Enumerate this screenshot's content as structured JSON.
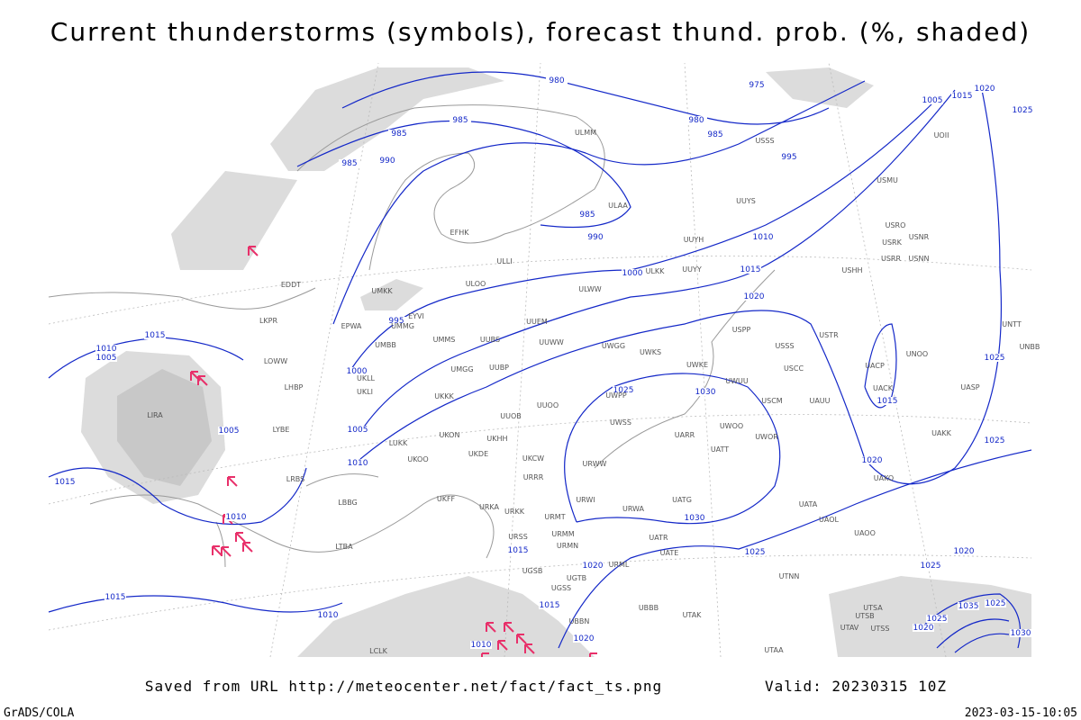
{
  "title": "Current thunderstorms (symbols), forecast thund. prob. (%, shaded)",
  "footer": {
    "saved": "Saved from URL http://meteocenter.net/fact/fact_ts.png",
    "valid": "Valid: 20230315 10Z",
    "credit": "GrADS/COLA",
    "timestamp": "2023-03-15-10:05"
  },
  "isobar_labels": [
    "980",
    "975",
    "985",
    "985",
    "980",
    "985",
    "985",
    "990",
    "995",
    "1005",
    "1015",
    "1020",
    "1025",
    "985",
    "990",
    "1010",
    "1015",
    "1000",
    "1020",
    "995",
    "1015",
    "1010",
    "1005",
    "1000",
    "1025",
    "1030",
    "1015",
    "1025",
    "1005",
    "1005",
    "1010",
    "1025",
    "1020",
    "1015",
    "1010",
    "1030",
    "1025",
    "1020",
    "1015",
    "1020",
    "1025",
    "1015",
    "1010",
    "1015",
    "1010",
    "1020",
    "1025",
    "1035",
    "1025",
    "1020",
    "1030"
  ],
  "stations": [
    "ULMM",
    "ULAA",
    "EFHK",
    "ULLI",
    "ULOO",
    "ULWW",
    "ULKK",
    "UUYY",
    "UUYH",
    "UUYS",
    "UUEM",
    "UUWW",
    "UUBS",
    "UMMS",
    "UMKK",
    "EYVI",
    "UMMG",
    "EPWA",
    "UMBB",
    "EDDT",
    "LKPR",
    "LOWW",
    "LHBP",
    "UKLL",
    "UKLI",
    "UKKK",
    "UUOO",
    "UMGG",
    "UUBP",
    "UWGG",
    "UWKS",
    "UWKE",
    "UWUU",
    "UWPP",
    "UUOB",
    "UKHH",
    "UKON",
    "UKDE",
    "UKOO",
    "LUKK",
    "LRBS",
    "UKFF",
    "URKA",
    "URKK",
    "URRR",
    "UKCW",
    "URWW",
    "UWSS",
    "URWI",
    "URWA",
    "UATG",
    "UARR",
    "UATT",
    "UWOO",
    "UWOR",
    "USSS",
    "USCC",
    "USCM",
    "UAUU",
    "USTR",
    "UACP",
    "UACK",
    "UNOO",
    "UNTT",
    "UNBB",
    "UASP",
    "UAKK",
    "UAKO",
    "UAOL",
    "UATA",
    "UAOO",
    "UATE",
    "UATR",
    "URMT",
    "URMM",
    "URMN",
    "URML",
    "UGTB",
    "UGSB",
    "UGSS",
    "UBBB",
    "UTAK",
    "UTAA",
    "UTAV",
    "UTSB",
    "UTSA",
    "UTSS",
    "UTNN",
    "URSS",
    "UBBN",
    "LTBA",
    "LIRA",
    "LYBE",
    "LBBG",
    "LCLK",
    "USSS",
    "USRR",
    "USNN",
    "USRK",
    "USRO",
    "USNR",
    "USMU",
    "USHH",
    "USPP",
    "UOII"
  ]
}
